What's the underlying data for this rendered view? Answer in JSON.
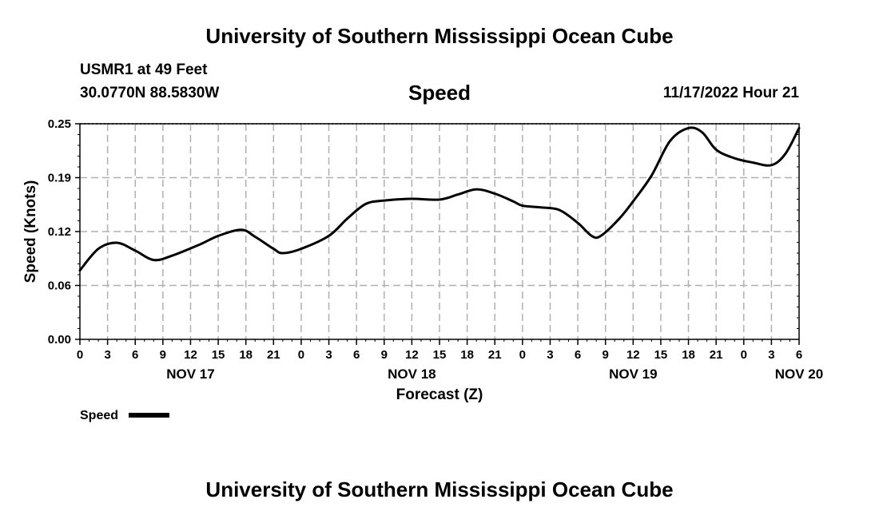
{
  "header": {
    "title": "University of Southern Mississippi Ocean Cube",
    "station": "USMR1 at 49 Feet",
    "coords": "30.0770N  88.5830W",
    "datetime": "11/17/2022 Hour 21"
  },
  "footer": {
    "title": "University of Southern Mississippi Ocean Cube"
  },
  "chart_data": {
    "type": "line",
    "title": "Speed",
    "xlabel": "Forecast (Z)",
    "ylabel": "Speed (Knots)",
    "ylim": [
      0,
      0.25
    ],
    "y_ticks": [
      "0.00",
      "0.06",
      "0.12",
      "0.19",
      "0.25"
    ],
    "y_tick_values": [
      0,
      0.0625,
      0.125,
      0.1875,
      0.25
    ],
    "xlim": [
      0,
      78
    ],
    "x_ticks": [
      0,
      3,
      6,
      9,
      12,
      15,
      18,
      21,
      24,
      27,
      30,
      33,
      36,
      39,
      42,
      45,
      48,
      51,
      54,
      57,
      60,
      63,
      66,
      69,
      72,
      75,
      78
    ],
    "x_tick_labels": [
      "0",
      "3",
      "6",
      "9",
      "12",
      "15",
      "18",
      "21",
      "0",
      "3",
      "6",
      "9",
      "12",
      "15",
      "18",
      "21",
      "0",
      "3",
      "6",
      "9",
      "12",
      "15",
      "18",
      "21",
      "0",
      "3",
      "6"
    ],
    "day_labels": [
      {
        "hour": 12,
        "label": "NOV 17"
      },
      {
        "hour": 36,
        "label": "NOV 18"
      },
      {
        "hour": 60,
        "label": "NOV 19"
      },
      {
        "hour": 78,
        "label": "NOV 20"
      }
    ],
    "grid": true,
    "legend": {
      "label": "Speed",
      "placement": "bottom-left"
    },
    "series": [
      {
        "name": "Speed",
        "x": [
          0,
          2,
          4,
          6,
          8,
          10,
          13,
          15,
          17.5,
          19,
          21,
          22,
          24,
          27,
          29,
          31,
          33,
          36,
          39,
          41,
          43,
          45,
          47,
          48,
          50,
          52,
          54,
          55.5,
          56.5,
          58.5,
          60,
          62,
          64,
          66,
          67.5,
          69,
          71,
          73,
          75,
          76.5,
          78
        ],
        "values": [
          0.08,
          0.105,
          0.112,
          0.103,
          0.092,
          0.097,
          0.11,
          0.12,
          0.127,
          0.119,
          0.105,
          0.1,
          0.105,
          0.12,
          0.14,
          0.157,
          0.161,
          0.163,
          0.162,
          0.168,
          0.174,
          0.169,
          0.16,
          0.155,
          0.153,
          0.15,
          0.135,
          0.12,
          0.12,
          0.14,
          0.16,
          0.19,
          0.23,
          0.245,
          0.24,
          0.22,
          0.21,
          0.205,
          0.202,
          0.215,
          0.245
        ]
      }
    ]
  }
}
